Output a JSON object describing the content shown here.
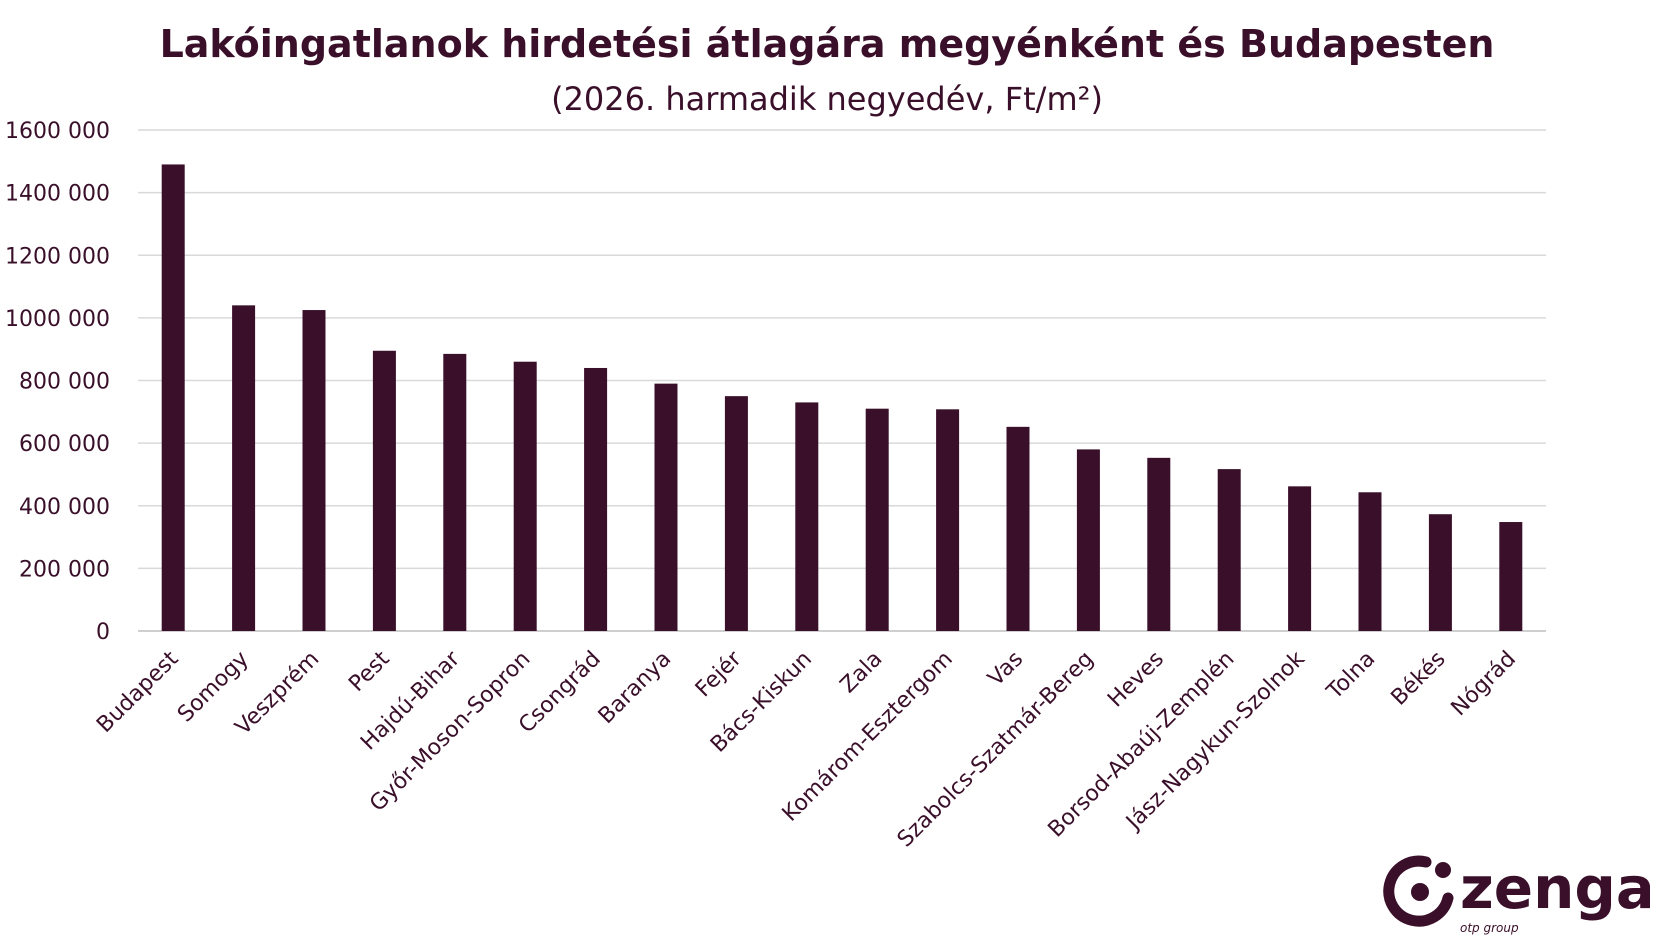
{
  "chart_data": {
    "type": "bar",
    "title": "Lakóingatlanok hirdetési átlagára megyénként és Budapesten",
    "subtitle": "(2026. harmadik negyedév, Ft/m²)",
    "xlabel": "",
    "ylabel": "",
    "ylim": [
      0,
      1600000
    ],
    "yticks": [
      0,
      200000,
      400000,
      600000,
      800000,
      1000000,
      1200000,
      1400000,
      1600000
    ],
    "ytick_labels": [
      "0",
      "200 000",
      "400 000",
      "600 000",
      "800 000",
      "1000 000",
      "1200 000",
      "1400 000",
      "1600 000"
    ],
    "categories": [
      "Budapest",
      "Somogy",
      "Veszprém",
      "Pest",
      "Hajdú-Bihar",
      "Győr-Moson-Sopron",
      "Csongrád",
      "Baranya",
      "Fejér",
      "Bács-Kiskun",
      "Zala",
      "Komárom-Esztergom",
      "Vas",
      "Szabolcs-Szatmár-Bereg",
      "Heves",
      "Borsod-Abaúj-Zemplén",
      "Jász-Nagykun-Szolnok",
      "Tolna",
      "Békés",
      "Nógrád"
    ],
    "values": [
      1490000,
      1040000,
      1025000,
      895000,
      885000,
      860000,
      840000,
      790000,
      750000,
      730000,
      710000,
      708000,
      652000,
      580000,
      553000,
      517000,
      462000,
      443000,
      373000,
      348000
    ],
    "grid": true,
    "legend": "none",
    "bar_color": "#3a0f2a",
    "grid_color": "#d9d9d9"
  },
  "logo": {
    "name": "zenga",
    "tagline": "otp group",
    "color": "#3a0f2a"
  }
}
